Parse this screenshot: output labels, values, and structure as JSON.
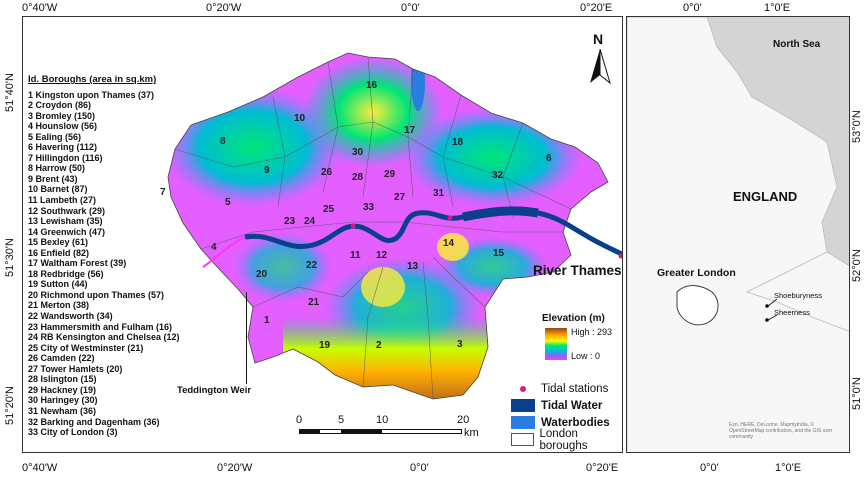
{
  "axes": {
    "top_lon": [
      "0°40'W",
      "0°20'W",
      "0°0'",
      "0°20'E"
    ],
    "bottom_lon": [
      "0°40'W",
      "0°20'W",
      "0°0'",
      "0°20'E"
    ],
    "left_lat": [
      "51°40'N",
      "51°30'N",
      "51°20'N"
    ],
    "inset_top_lon": [
      "0°0'",
      "1°0'E"
    ],
    "inset_bottom_lon": [
      "0°0'",
      "1°0'E"
    ],
    "inset_right_lat": [
      "53°0'N",
      "52°0'N",
      "51°0'N"
    ]
  },
  "boroughs": {
    "title": "Id. Boroughs (area in sq.km)",
    "list": [
      "1  Kingston upon Thames  (37)",
      "2  Croydon  (86)",
      "3  Bromley  (150)",
      "4  Hounslow  (56)",
      "5  Ealing  (56)",
      "6  Havering  (112)",
      "7  Hillingdon  (116)",
      "8  Harrow  (50)",
      "9  Brent  (43)",
      "10  Barnet  (87)",
      "11  Lambeth  (27)",
      "12  Southwark  (29)",
      "13  Lewisham  (35)",
      "14  Greenwich  (47)",
      "15  Bexley  (61)",
      "16  Enfield  (82)",
      "17  Waltham Forest  (39)",
      "18  Redbridge  (56)",
      "19  Sutton  (44)",
      "20  Richmond upon Thames  (57)",
      "21  Merton  (38)",
      "22  Wandsworth  (34)",
      "23  Hammersmith and Fulham  (16)",
      "24  RB Kensington and Chelsea  (12)",
      "25  City of Westminster  (21)",
      "26  Camden  (22)",
      "27  Tower Hamlets  (20)",
      "28  Islington  (15)",
      "29  Hackney  (19)",
      "30  Haringey  (30)",
      "31  Newham  (36)",
      "32  Barking and Dagenham  (36)",
      "33  City of London  (3)"
    ],
    "map_numbers": [
      "1",
      "2",
      "3",
      "4",
      "5",
      "6",
      "7",
      "8",
      "9",
      "10",
      "11",
      "12",
      "13",
      "14",
      "15",
      "16",
      "17",
      "18",
      "19",
      "20",
      "21",
      "22",
      "23",
      "24",
      "25",
      "26",
      "27",
      "28",
      "29",
      "30",
      "31",
      "32",
      "33"
    ]
  },
  "labels": {
    "north": "N",
    "teddington": "Teddington Weir",
    "river": "River Thames"
  },
  "elevation": {
    "title": "Elevation (m)",
    "high": "High : 293",
    "low": "Low : 0"
  },
  "scale": {
    "ticks": [
      "0",
      "5",
      "10",
      "20"
    ],
    "unit": "km"
  },
  "legend": [
    {
      "label": "Tidal stations",
      "color": "#e0138c",
      "shape": "dot"
    },
    {
      "label": "Tidal Water",
      "color": "#0b3f8c",
      "shape": "box"
    },
    {
      "label": "Waterbodies",
      "color": "#2a7de1",
      "shape": "box"
    },
    {
      "label": "London boroughs",
      "color": "#ffffff",
      "shape": "box"
    }
  ],
  "inset": {
    "north_sea": "North Sea",
    "england": "ENGLAND",
    "greater_london": "Greater London",
    "shoeburyness": "Shoeburyness",
    "sheerness": "Sheerness",
    "credit": "Esri, HERE, DeLorme, MapmyIndia, © OpenStreetMap contributors, and the GIS user community"
  },
  "colors": {
    "elev_high": "#8b4513",
    "elev_mid": "#ffff00",
    "elev_green": "#00e676",
    "elev_cyan": "#00bcd4",
    "elev_low": "#ff33ff",
    "tidal_water": "#0b3f8c",
    "waterbody": "#2a7de1"
  }
}
